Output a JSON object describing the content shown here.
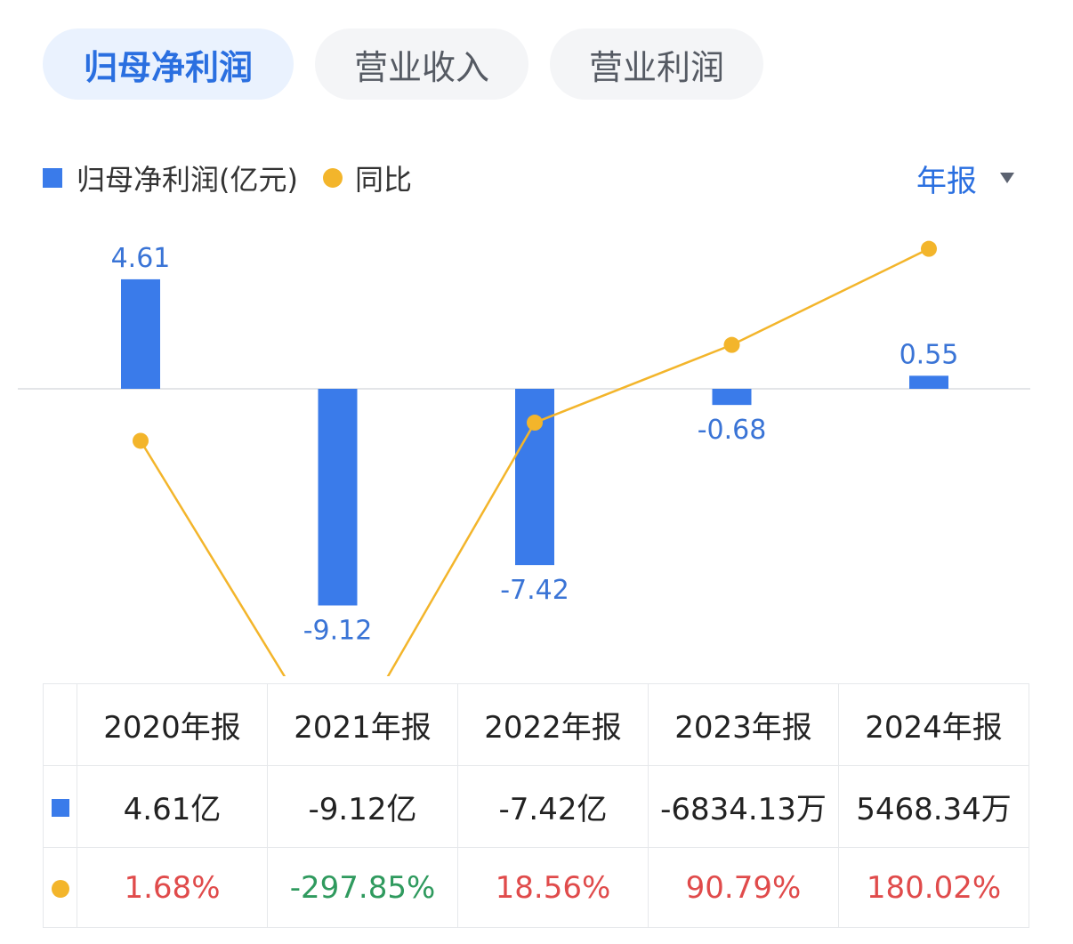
{
  "tabs": [
    {
      "label": "归母净利润",
      "active": true
    },
    {
      "label": "营业收入",
      "active": false
    },
    {
      "label": "营业利润",
      "active": false
    }
  ],
  "legend": {
    "bar_label": "归母净利润(亿元)",
    "line_label": "同比"
  },
  "period_select": {
    "value": "年报",
    "icon": "caret-down-icon"
  },
  "colors": {
    "bar": "#3a7bea",
    "line": "#f3b52b",
    "bar_label": "#3a74d6",
    "positive": "#e04b4b",
    "negative": "#2f9a5e",
    "active_tab_text": "#2a6fe0"
  },
  "chart_data": {
    "type": "bar",
    "categories": [
      "2020年报",
      "2021年报",
      "2022年报",
      "2023年报",
      "2024年报"
    ],
    "series": [
      {
        "name": "归母净利润(亿元)",
        "type": "bar",
        "values": [
          4.61,
          -9.12,
          -7.42,
          -0.68,
          0.55
        ],
        "labels": [
          "4.61",
          "-9.12",
          "-7.42",
          "-0.68",
          "0.55"
        ]
      },
      {
        "name": "同比",
        "type": "line",
        "values": [
          1.68,
          -297.85,
          18.56,
          90.79,
          180.02
        ]
      }
    ],
    "grid": false,
    "legend_position": "top-left"
  },
  "table": {
    "headers": [
      "2020年报",
      "2021年报",
      "2022年报",
      "2023年报",
      "2024年报"
    ],
    "values": [
      "4.61亿",
      "-9.12亿",
      "-7.42亿",
      "-6834.13万",
      "5468.34万"
    ],
    "yoy": [
      "1.68%",
      "-297.85%",
      "18.56%",
      "90.79%",
      "180.02%"
    ]
  }
}
